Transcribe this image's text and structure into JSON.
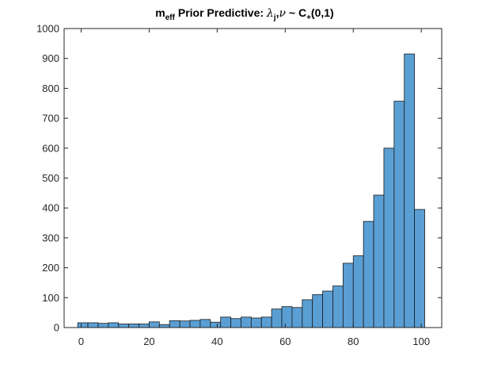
{
  "chart_data": {
    "type": "histogram",
    "title": {
      "m": "m",
      "m_sub": "eff",
      "text": "Prior Predictive:",
      "lambda": "λ",
      "lambda_sub": "j",
      "comma": ",",
      "nu": "ν",
      "sim": "~",
      "C": "C",
      "C_sub": "+",
      "args": "(0,1)"
    },
    "xlabel": "",
    "ylabel": "",
    "xlim": [
      -5,
      106
    ],
    "ylim": [
      0,
      1000
    ],
    "xticks": [
      0,
      20,
      40,
      60,
      80,
      100
    ],
    "yticks": [
      0,
      100,
      200,
      300,
      400,
      500,
      600,
      700,
      800,
      900,
      1000
    ],
    "bin_width": 3,
    "bin_start": -1,
    "values": [
      16,
      16,
      14,
      16,
      12,
      12,
      12,
      19,
      10,
      23,
      22,
      24,
      27,
      18,
      35,
      30,
      35,
      32,
      35,
      62,
      70,
      67,
      93,
      110,
      122,
      139,
      215,
      240,
      355,
      443,
      600,
      757,
      915,
      395
    ],
    "bar_color": "#5a9fd4",
    "edge_color": "#1a1a1a",
    "grid": false
  }
}
